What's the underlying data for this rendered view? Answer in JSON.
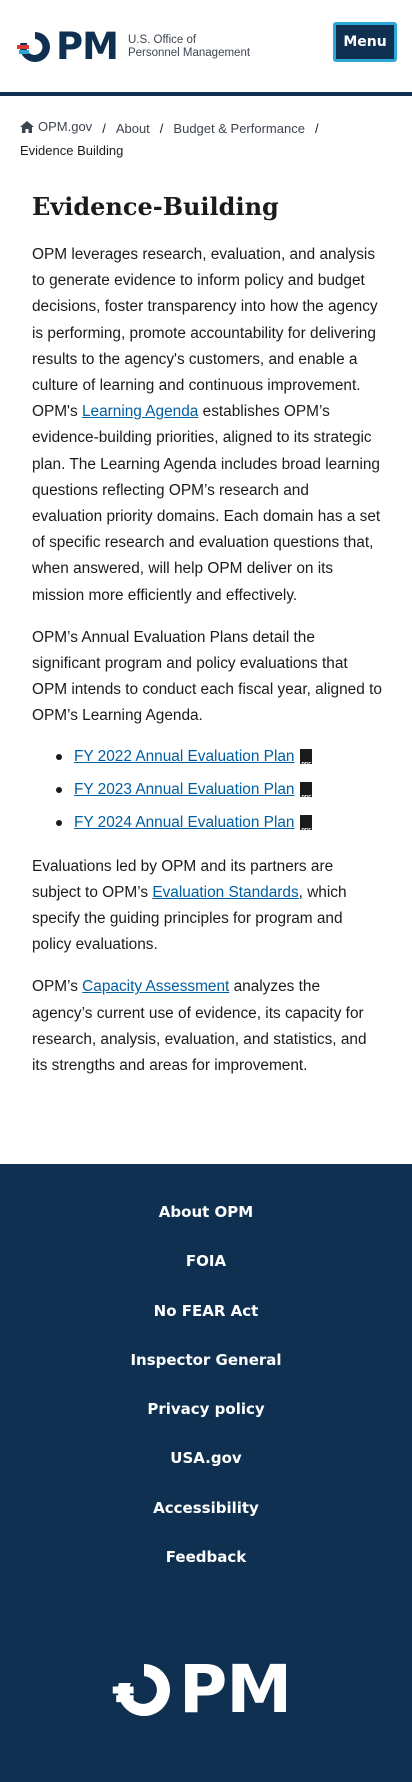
{
  "header": {
    "logo_letters": "PM",
    "logo_line1": "U.S. Office of",
    "logo_line2": "Personnel Management",
    "menu_label": "Menu",
    "colors": {
      "navy": "#0f3050",
      "red": "#d83933",
      "blue": "#2ba7d8"
    }
  },
  "breadcrumb": {
    "items": [
      "OPM.gov",
      "About",
      "Budget & Performance"
    ],
    "separator": "/",
    "current": "Evidence Building"
  },
  "main": {
    "title": "Evidence-Building",
    "p1_before": "OPM leverages research, evaluation, and analysis to generate evidence to inform policy and budget decisions, foster transparency into how the agency is performing, promote accountability for delivering results to the agency's customers, and enable a culture of learning and continuous improvement. OPM's ",
    "p1_link": "Learning Agenda",
    "p1_after": " establishes OPM’s evidence-building priorities, aligned to its strategic plan. The Learning Agenda includes broad learning questions reflecting OPM’s research and evaluation priority domains. Each domain has a set of specific research and evaluation questions that, when answered, will help OPM deliver on its mission more efficiently and effectively.",
    "p2": "OPM’s Annual Evaluation Plans detail the significant program and policy evaluations that OPM intends to conduct each fiscal year, aligned to OPM’s Learning Agenda.",
    "plans": [
      "FY 2022 Annual Evaluation Plan",
      "FY 2023 Annual Evaluation Plan",
      "FY 2024 Annual Evaluation Plan"
    ],
    "p3_before": "Evaluations led by OPM and its partners are subject to OPM’s ",
    "p3_link": "Evaluation Standards",
    "p3_after": ", which specify the guiding principles for program and policy evaluations.",
    "p4_before": "OPM’s ",
    "p4_link": "Capacity Assessment",
    "p4_after": " analyzes the agency’s current use of evidence, its capacity for research, analysis, evaluation, and statistics, and its strengths and areas for improvement."
  },
  "footer": {
    "links": [
      "About OPM",
      "FOIA",
      "No FEAR Act",
      "Inspector General",
      "Privacy policy",
      "USA.gov",
      "Accessibility",
      "Feedback"
    ],
    "logo_letters": "PM"
  }
}
